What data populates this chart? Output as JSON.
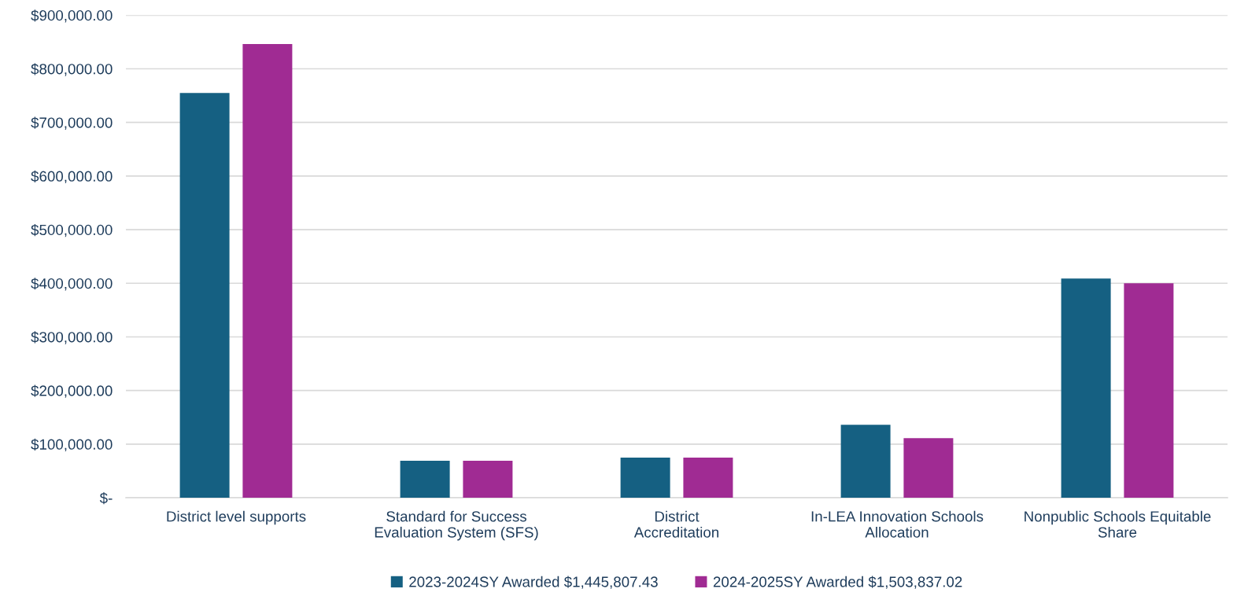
{
  "chart_data": {
    "type": "bar",
    "categories": [
      "District level supports",
      "Standard for Success\nEvaluation System (SFS)",
      "District\nAccreditation",
      "In-LEA Innovation Schools\nAllocation",
      "Nonpublic Schools Equitable\nShare"
    ],
    "series": [
      {
        "name": "2023-2024SY Awarded $1,445,807.43",
        "color": "#156082",
        "values": [
          755000,
          69000,
          75000,
          136000,
          409000
        ]
      },
      {
        "name": "2024-2025SY Awarded $1,503,837.02",
        "color": "#a02b93",
        "values": [
          846000,
          69000,
          75000,
          111000,
          400000
        ]
      }
    ],
    "ylim": [
      0,
      900000
    ],
    "yticks": [
      {
        "value": 0,
        "label": "$-"
      },
      {
        "value": 100000,
        "label": "$100,000.00"
      },
      {
        "value": 200000,
        "label": "$200,000.00"
      },
      {
        "value": 300000,
        "label": "$300,000.00"
      },
      {
        "value": 400000,
        "label": "$400,000.00"
      },
      {
        "value": 500000,
        "label": "$500,000.00"
      },
      {
        "value": 600000,
        "label": "$600,000.00"
      },
      {
        "value": 700000,
        "label": "$700,000.00"
      },
      {
        "value": 800000,
        "label": "$800,000.00"
      },
      {
        "value": 900000,
        "label": "$900,000.00"
      }
    ],
    "grid": "y",
    "legend": "bottom"
  }
}
